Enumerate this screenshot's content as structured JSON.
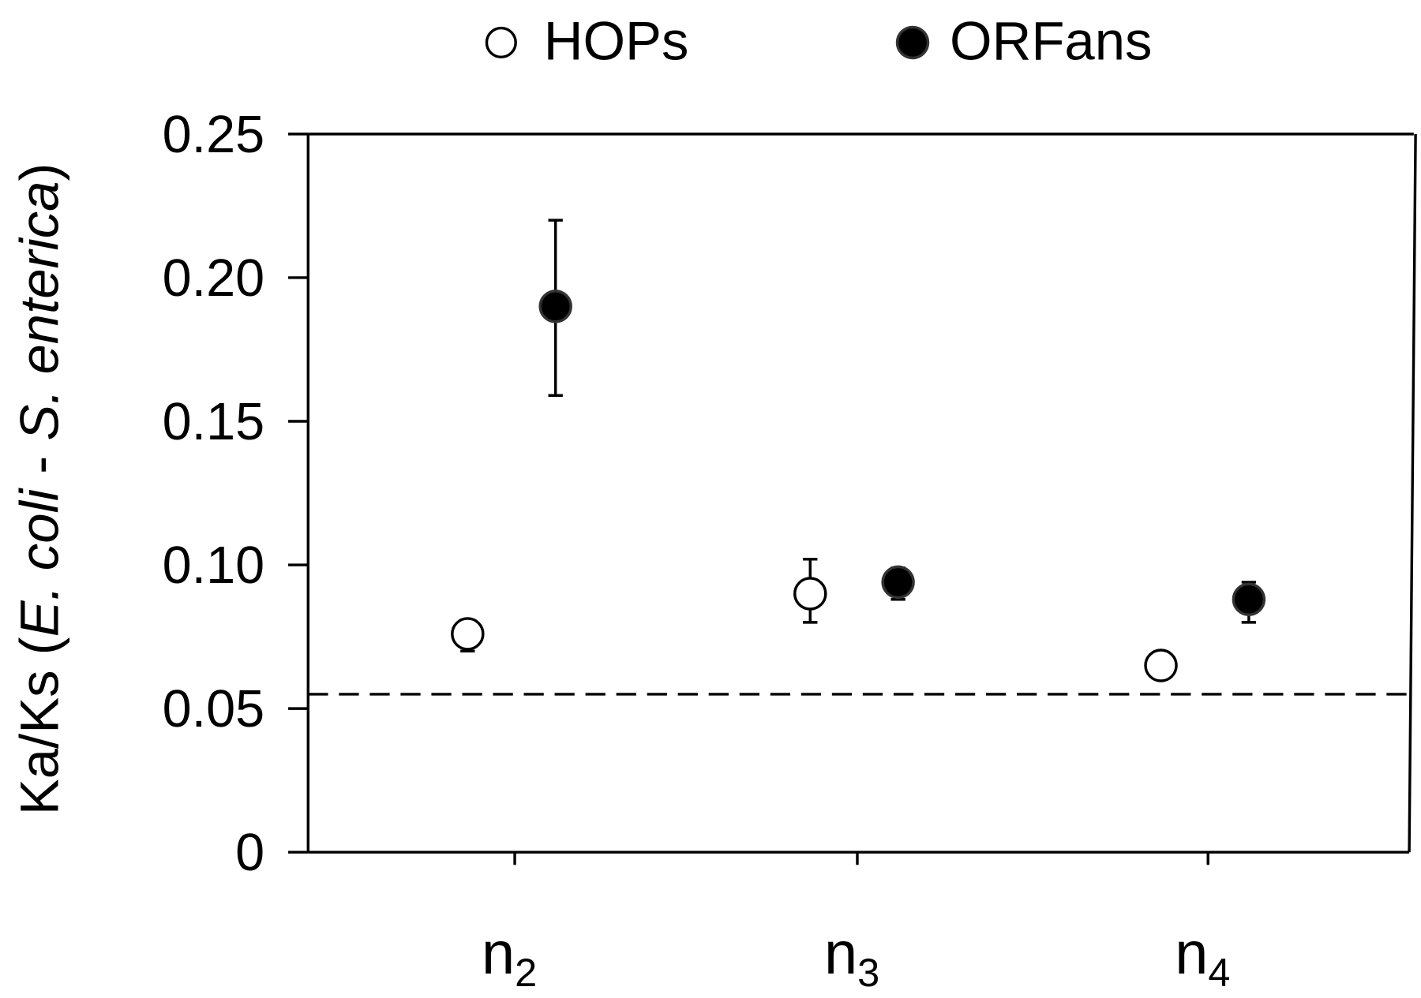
{
  "chart_data": {
    "type": "scatter",
    "title": "",
    "xlabel": "",
    "ylabel_parts": [
      {
        "text": "Ka/Ks (",
        "italic": false
      },
      {
        "text": "E. coli",
        "italic": true
      },
      {
        "text": " - ",
        "italic": false
      },
      {
        "text": "S. enterica",
        "italic": true
      },
      {
        "text": ")",
        "italic": false
      }
    ],
    "categories": [
      {
        "base": "n",
        "sub": "2"
      },
      {
        "base": "n",
        "sub": "3"
      },
      {
        "base": "n",
        "sub": "4"
      }
    ],
    "ylim": [
      0,
      0.25
    ],
    "yticks": [
      "0",
      "0.05",
      "0.10",
      "0.15",
      "0.20",
      "0.25"
    ],
    "grid": false,
    "legend_position": "top-center",
    "reference_line": {
      "y": 0.055,
      "style": "dashed"
    },
    "series": [
      {
        "name": "HOPs",
        "marker": "open-circle",
        "values": [
          0.076,
          0.09,
          0.065
        ],
        "error_low": [
          0.07,
          0.08,
          null
        ],
        "error_high": [
          null,
          0.102,
          null
        ]
      },
      {
        "name": "ORFans",
        "marker": "filled-circle",
        "values": [
          0.19,
          0.094,
          0.088
        ],
        "error_low": [
          0.159,
          0.088,
          0.08
        ],
        "error_high": [
          0.22,
          0.099,
          0.094
        ]
      }
    ],
    "colors": {
      "axis": "#000000",
      "open_fill": "#ffffff",
      "filled": "#000000"
    }
  }
}
